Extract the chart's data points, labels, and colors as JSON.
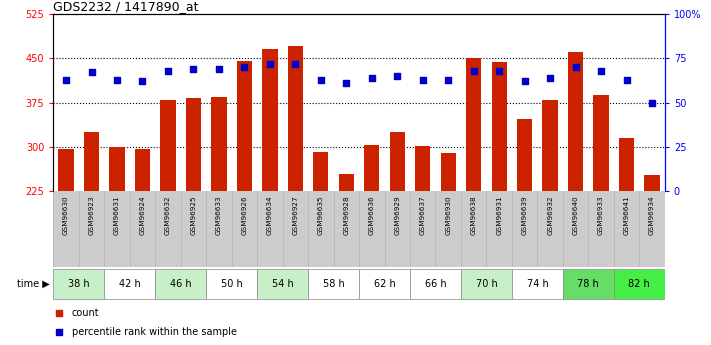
{
  "title": "GDS2232 / 1417890_at",
  "samples": [
    "GSM96630",
    "GSM96923",
    "GSM96631",
    "GSM96924",
    "GSM96632",
    "GSM96925",
    "GSM96633",
    "GSM96926",
    "GSM96634",
    "GSM96927",
    "GSM96635",
    "GSM96928",
    "GSM96636",
    "GSM96929",
    "GSM96637",
    "GSM96930",
    "GSM96638",
    "GSM96931",
    "GSM96639",
    "GSM96932",
    "GSM96640",
    "GSM96933",
    "GSM96641",
    "GSM96934"
  ],
  "counts": [
    297,
    325,
    300,
    296,
    380,
    383,
    384,
    445,
    465,
    470,
    291,
    254,
    303,
    325,
    302,
    290,
    450,
    443,
    348,
    380,
    460,
    388,
    316,
    252
  ],
  "percentiles": [
    63,
    67,
    63,
    62,
    68,
    69,
    69,
    70,
    72,
    72,
    63,
    61,
    64,
    65,
    63,
    63,
    68,
    68,
    62,
    64,
    70,
    68,
    63,
    50
  ],
  "time_groups": [
    {
      "label": "38 h",
      "start": 0,
      "end": 2,
      "color": "#c8f0c8"
    },
    {
      "label": "42 h",
      "start": 2,
      "end": 4,
      "color": "#ffffff"
    },
    {
      "label": "46 h",
      "start": 4,
      "end": 6,
      "color": "#c8f0c8"
    },
    {
      "label": "50 h",
      "start": 6,
      "end": 8,
      "color": "#ffffff"
    },
    {
      "label": "54 h",
      "start": 8,
      "end": 10,
      "color": "#c8f0c8"
    },
    {
      "label": "58 h",
      "start": 10,
      "end": 12,
      "color": "#ffffff"
    },
    {
      "label": "62 h",
      "start": 12,
      "end": 14,
      "color": "#ffffff"
    },
    {
      "label": "66 h",
      "start": 14,
      "end": 16,
      "color": "#ffffff"
    },
    {
      "label": "70 h",
      "start": 16,
      "end": 18,
      "color": "#c8f0c8"
    },
    {
      "label": "74 h",
      "start": 18,
      "end": 20,
      "color": "#ffffff"
    },
    {
      "label": "78 h",
      "start": 20,
      "end": 22,
      "color": "#66dd66"
    },
    {
      "label": "82 h",
      "start": 22,
      "end": 24,
      "color": "#44ee44"
    }
  ],
  "ymin": 225,
  "ymax": 525,
  "yticks": [
    225,
    300,
    375,
    450,
    525
  ],
  "y2ticks": [
    0,
    25,
    50,
    75,
    100
  ],
  "bar_color": "#cc2200",
  "dot_color": "#0000cc",
  "legend_count_label": "count",
  "legend_pct_label": "percentile rank within the sample"
}
